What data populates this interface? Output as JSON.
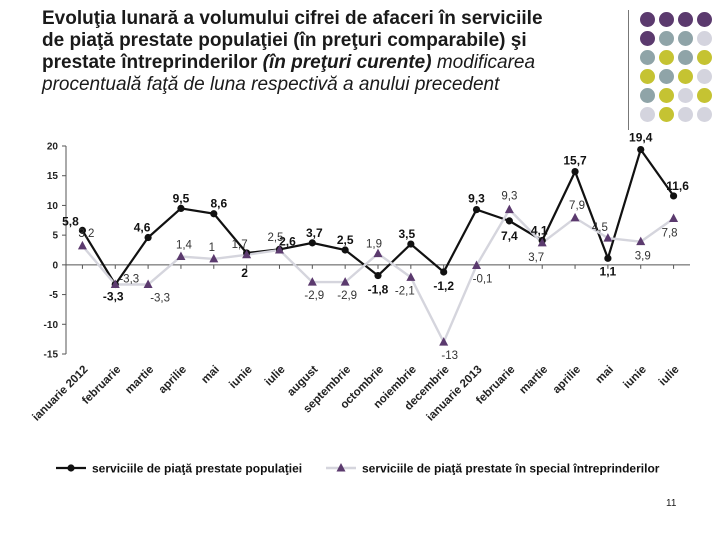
{
  "title": {
    "line1": "Evoluţia lunară a volumului cifrei de afaceri în serviciile",
    "line2": "de piaţă prestate populaţiei (în preţuri comparabile) şi",
    "line3_a": "prestate întreprinderilor ",
    "line3_b": "(în preţuri curente)",
    "line3_c": " modificarea",
    "line4": "procentuală faţă de luna respectivă a anului precedent"
  },
  "decor_colors": [
    "#5b3a6e",
    "#8fa4a8",
    "#c5c332",
    "#d4d4de"
  ],
  "page_number": "11",
  "chart_data": {
    "type": "line",
    "categories": [
      "ianuarie 2012",
      "februarie",
      "martie",
      "aprilie",
      "mai",
      "iunie",
      "iulie",
      "august",
      "septembrie",
      "octombrie",
      "noiembrie",
      "decembrie",
      "ianuarie 2013",
      "februarie",
      "martie",
      "aprilie",
      "mai",
      "iunie",
      "iulie"
    ],
    "ylim": [
      -15,
      20
    ],
    "yticks": [
      20,
      15,
      10,
      5,
      0,
      -5,
      -10,
      -15
    ],
    "grid": false,
    "series": [
      {
        "name": "serviciile de piaţă prestate populaţiei",
        "marker": "circle",
        "color": "#111111",
        "values": [
          5.8,
          -3.3,
          4.6,
          9.5,
          8.6,
          2.0,
          2.6,
          3.7,
          2.5,
          -1.8,
          3.5,
          -1.2,
          9.3,
          7.4,
          4.1,
          15.7,
          1.1,
          19.4,
          11.6
        ],
        "labels": [
          "5,8",
          "-3,3",
          "4,6",
          "9,5",
          "8,6",
          "2",
          "2,6",
          "3,7",
          "2,5",
          "-1,8",
          "3,5",
          "-1,2",
          "9,3",
          "7,4",
          "4,1",
          "15,7",
          "1,1",
          "19,4",
          "11,6"
        ]
      },
      {
        "name": "serviciile de piaţă prestate în special întreprinderilor",
        "marker": "triangle",
        "color": "#5b3a6e",
        "values": [
          3.2,
          -3.3,
          -3.3,
          1.4,
          1.0,
          1.7,
          2.5,
          -2.9,
          -2.9,
          1.9,
          -2.1,
          -13.0,
          -0.1,
          9.3,
          3.7,
          7.9,
          4.5,
          3.9,
          7.8
        ],
        "labels": [
          "3,2",
          "-3,3",
          "-3,3",
          "1,4",
          "1",
          "1,7",
          "2,5",
          "-2,9",
          "-2,9",
          "1,9",
          "-2,1",
          "-13",
          "-0,1",
          "9,3",
          "3,7",
          "7,9",
          "4,5",
          "3,9",
          "7,8"
        ]
      }
    ]
  }
}
